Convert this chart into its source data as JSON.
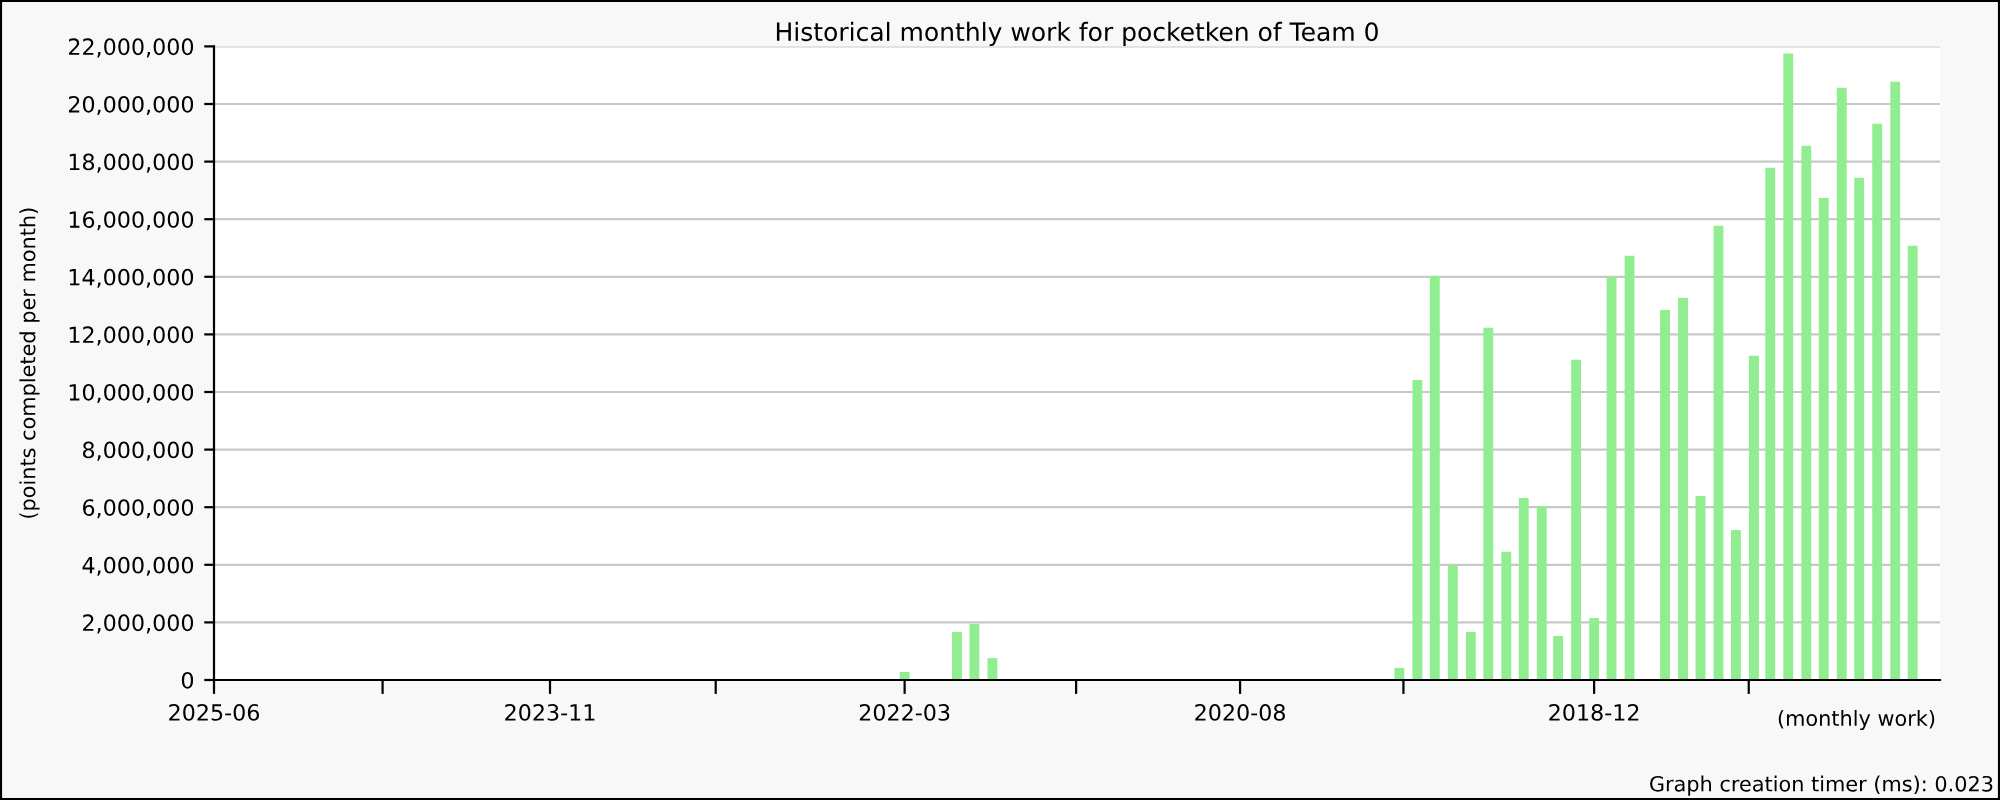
{
  "chart_data": {
    "type": "bar",
    "title": "Historical monthly work for pocketken of Team 0",
    "xlabel": "(monthly work)",
    "ylabel": "(points completed per month)",
    "x": [
      "2022-03",
      "2021-12",
      "2021-11",
      "2021-10",
      "2019-11",
      "2019-10",
      "2019-09",
      "2019-08",
      "2019-07",
      "2019-06",
      "2019-05",
      "2019-04",
      "2019-03",
      "2019-02",
      "2019-01",
      "2018-12",
      "2018-11",
      "2018-10",
      "2018-09",
      "2018-08",
      "2018-07",
      "2018-06",
      "2018-05",
      "2018-04",
      "2018-03",
      "2018-02",
      "2018-01",
      "2017-12",
      "2017-11",
      "2017-10",
      "2017-09",
      "2017-08",
      "2017-07",
      "2017-06"
    ],
    "values": [
      280000,
      1670000,
      1950000,
      760000,
      420000,
      10420000,
      14030000,
      4000000,
      1670000,
      12230000,
      4450000,
      6320000,
      6040000,
      1530000,
      11120000,
      2150000,
      13990000,
      14730000,
      null,
      12850000,
      13270000,
      6390000,
      15770000,
      5210000,
      11260000,
      17790000,
      21750000,
      18550000,
      16740000,
      20560000,
      17440000,
      19310000,
      20770000,
      15080000
    ],
    "color": "#90ee90",
    "xlim": [
      "2025-06",
      "2017-04-15"
    ],
    "xticks": [
      {
        "value": "2025-06",
        "label": "2025-06"
      },
      {
        "value": "2024-08-15",
        "label": null
      },
      {
        "value": "2023-11",
        "label": "2023-11"
      },
      {
        "value": "2023-01-20",
        "label": null
      },
      {
        "value": "2022-03",
        "label": "2022-03"
      },
      {
        "value": "2021-05-10",
        "label": null
      },
      {
        "value": "2020-08",
        "label": "2020-08"
      },
      {
        "value": "2019-10-25",
        "label": null
      },
      {
        "value": "2018-12",
        "label": "2018-12"
      },
      {
        "value": "2018-03-10",
        "label": null
      }
    ],
    "ylim": [
      0,
      22000000
    ],
    "yticks": [
      {
        "value": 0,
        "label": "0"
      },
      {
        "value": 2000000,
        "label": "2,000,000"
      },
      {
        "value": 4000000,
        "label": "4,000,000"
      },
      {
        "value": 6000000,
        "label": "6,000,000"
      },
      {
        "value": 8000000,
        "label": "8,000,000"
      },
      {
        "value": 10000000,
        "label": "10,000,000"
      },
      {
        "value": 12000000,
        "label": "12,000,000"
      },
      {
        "value": 14000000,
        "label": "14,000,000"
      },
      {
        "value": 16000000,
        "label": "16,000,000"
      },
      {
        "value": 18000000,
        "label": "18,000,000"
      },
      {
        "value": 20000000,
        "label": "20,000,000"
      },
      {
        "value": 22000000,
        "label": "22,000,000"
      }
    ],
    "grid": "y",
    "legend": false,
    "annotations": [
      "Graph creation timer (ms): 0.023"
    ]
  }
}
